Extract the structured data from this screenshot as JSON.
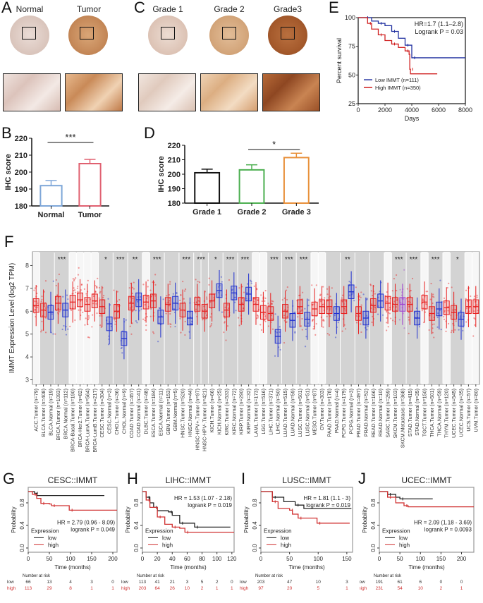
{
  "panel_labels": {
    "A": "A",
    "B": "B",
    "C": "C",
    "D": "D",
    "E": "E",
    "F": "F",
    "G": "G",
    "H": "H",
    "I": "I",
    "J": "J"
  },
  "panel_A": {
    "captions": [
      "Normal",
      "Tumor"
    ]
  },
  "panel_C": {
    "captions": [
      "Grade 1",
      "Grade 2",
      "Grade3"
    ]
  },
  "chart_data": [
    {
      "id": "B",
      "type": "bar",
      "categories": [
        "Normal",
        "Tumor"
      ],
      "values": [
        192,
        205
      ],
      "errors": [
        3,
        2.5
      ],
      "colors": [
        "#7ea6d8",
        "#e06070"
      ],
      "ylabel": "IHC score",
      "ylim": [
        180,
        220
      ],
      "yticks": [
        180,
        190,
        200,
        210,
        220
      ],
      "significance": [
        {
          "from": 0,
          "to": 1,
          "label": "***"
        }
      ]
    },
    {
      "id": "D",
      "type": "bar",
      "categories": [
        "Grade 1",
        "Grade 2",
        "Grade 3"
      ],
      "values": [
        201,
        203,
        211.5
      ],
      "errors": [
        2.5,
        3.5,
        3
      ],
      "colors": [
        "#111111",
        "#4caf50",
        "#e8903a"
      ],
      "ylabel": "IHC score",
      "ylim": [
        180,
        220
      ],
      "yticks": [
        180,
        190,
        200,
        210,
        220
      ],
      "significance": [
        {
          "from": 1,
          "to": 2,
          "label": "*"
        }
      ]
    },
    {
      "id": "E",
      "type": "line",
      "subtype": "kaplan-meier",
      "xlabel": "Days",
      "ylabel": "Percent survival",
      "xlim": [
        0,
        8000
      ],
      "ylim": [
        25,
        100
      ],
      "xticks": [
        0,
        2000,
        4000,
        6000,
        8000
      ],
      "yticks": [
        25,
        50,
        75,
        100
      ],
      "annotation": [
        "HR=1.7 (1.1–2.8)",
        "Logrank P = 0.03"
      ],
      "series": [
        {
          "name": "Low IMMT (n=111)",
          "color": "#2030a0",
          "points": [
            [
              0,
              100
            ],
            [
              500,
              100
            ],
            [
              1000,
              97
            ],
            [
              1500,
              95
            ],
            [
              2000,
              93
            ],
            [
              2500,
              88
            ],
            [
              3000,
              82
            ],
            [
              3500,
              76
            ],
            [
              3950,
              76
            ],
            [
              4000,
              65
            ],
            [
              8000,
              65
            ]
          ]
        },
        {
          "name": "High IMMT (n=350)",
          "color": "#d02020",
          "points": [
            [
              0,
              100
            ],
            [
              700,
              95
            ],
            [
              1000,
              90
            ],
            [
              1500,
              85
            ],
            [
              2000,
              80
            ],
            [
              2500,
              77
            ],
            [
              3000,
              74
            ],
            [
              3500,
              71
            ],
            [
              3800,
              68
            ],
            [
              3850,
              55
            ],
            [
              3900,
              51
            ],
            [
              5900,
              51
            ]
          ]
        }
      ]
    },
    {
      "id": "F",
      "type": "box",
      "ylabel": "IMMT Expression Level (log2 TPM)",
      "ylim": [
        2.8,
        8.6
      ],
      "yticks": [
        3,
        4,
        5,
        6,
        7,
        8
      ],
      "samples": [
        {
          "label": "ACC.Tumor (n=79)",
          "median": 6.25
        },
        {
          "label": "BLCA.Tumor (n=408)",
          "median": 6.05
        },
        {
          "label": "BLCA.Normal (n=19)",
          "median": 5.95
        },
        {
          "label": "BRCA.Tumor (n=1093)",
          "median": 6.35
        },
        {
          "label": "BRCA.Normal (n=112)",
          "median": 6.05,
          "sig": "***"
        },
        {
          "label": "BRCA-Basal.Tumor (n=190)",
          "median": 6.4
        },
        {
          "label": "BRCA-Her2.Tumor (n=82)",
          "median": 6.5
        },
        {
          "label": "BRCA-LumA.Tumor (n=564)",
          "median": 6.3
        },
        {
          "label": "BRCA-LumB.Tumor (n=217)",
          "median": 6.45
        },
        {
          "label": "CESC.Tumor (n=304)",
          "median": 6.2
        },
        {
          "label": "CESC.Normal (n=3)",
          "median": 5.45,
          "sig": "*"
        },
        {
          "label": "CHOL.Tumor (n=36)",
          "median": 6.0
        },
        {
          "label": "CHOL.Normal (n=9)",
          "median": 4.8,
          "sig": "***"
        },
        {
          "label": "COAD.Tumor (n=457)",
          "median": 6.35
        },
        {
          "label": "COAD.Normal (n=41)",
          "median": 6.5,
          "sig": "**"
        },
        {
          "label": "DLBC.Tumor (n=48)",
          "median": 6.4
        },
        {
          "label": "ESCA.Tumor (n=184)",
          "median": 6.45
        },
        {
          "label": "ESCA.Normal (n=11)",
          "median": 5.75,
          "sig": "***"
        },
        {
          "label": "GBM.Tumor (n=153)",
          "median": 6.3
        },
        {
          "label": "GBM.Normal (n=5)",
          "median": 6.35
        },
        {
          "label": "HNSC.Tumor (n=520)",
          "median": 6.05
        },
        {
          "label": "HNSC.Normal (n=44)",
          "median": 5.7,
          "sig": "***"
        },
        {
          "label": "HNSC-HPV+.Tumor (n=97)",
          "median": 6.3
        },
        {
          "label": "HNSC-HPV-.Tumor (n=421)",
          "median": 6.0,
          "sig": "***"
        },
        {
          "label": "KICH.Tumor (n=66)",
          "median": 6.45
        },
        {
          "label": "KICH.Normal (n=25)",
          "median": 6.9,
          "sig": "*"
        },
        {
          "label": "KIRC.Tumor (n=533)",
          "median": 6.05
        },
        {
          "label": "KIRC.Normal (n=72)",
          "median": 6.8,
          "sig": "***"
        },
        {
          "label": "KIRP.Tumor (n=290)",
          "median": 6.3
        },
        {
          "label": "KIRP.Normal (n=32)",
          "median": 6.75,
          "sig": "***"
        },
        {
          "label": "LAML.Tumor (n=173)",
          "median": 6.3
        },
        {
          "label": "LGG.Tumor (n=516)",
          "median": 5.95
        },
        {
          "label": "LIHC.Tumor (n=371)",
          "median": 5.9
        },
        {
          "label": "LIHC.Normal (n=50)",
          "median": 4.9,
          "sig": "***"
        },
        {
          "label": "LUAD.Tumor (n=515)",
          "median": 6.0
        },
        {
          "label": "LUAD.Normal (n=59)",
          "median": 5.6,
          "sig": "***"
        },
        {
          "label": "LUSC.Tumor (n=501)",
          "median": 6.2
        },
        {
          "label": "LUSC.Normal (n=51)",
          "median": 5.65,
          "sig": "***"
        },
        {
          "label": "MESO.Tumor (n=87)",
          "median": 6.1
        },
        {
          "label": "OV.Tumor (n=303)",
          "median": 6.2
        },
        {
          "label": "PAAD.Tumor (n=178)",
          "median": 6.2
        },
        {
          "label": "PAAD.Normal (n=4)",
          "median": 5.9
        },
        {
          "label": "PCPG.Tumor (n=179)",
          "median": 6.2
        },
        {
          "label": "PCPG.Normal (n=3)",
          "median": 6.85,
          "sig": "**"
        },
        {
          "label": "PRAD.Tumor (n=497)",
          "median": 5.9
        },
        {
          "label": "PRAD.Normal (n=52)",
          "median": 5.7
        },
        {
          "label": "READ.Tumor (n=166)",
          "median": 6.25
        },
        {
          "label": "READ.Normal (n=10)",
          "median": 6.45
        },
        {
          "label": "SARC.Tumor (n=259)",
          "median": 6.35
        },
        {
          "label": "SKCM.Tumor (n=103)",
          "median": 6.3
        },
        {
          "label": "SKCM.Metastasis (n=368)",
          "median": 6.3,
          "sig": "***"
        },
        {
          "label": "STAD.Tumor (n=415)",
          "median": 6.3
        },
        {
          "label": "STAD.Normal (n=35)",
          "median": 5.7,
          "sig": "***"
        },
        {
          "label": "TGCT.Tumor (n=150)",
          "median": 6.4
        },
        {
          "label": "THCA.Tumor (n=501)",
          "median": 5.9
        },
        {
          "label": "THCA.Normal (n=59)",
          "median": 6.1,
          "sig": "***"
        },
        {
          "label": "THYM.Tumor (n=120)",
          "median": 6.15
        },
        {
          "label": "UCEC.Tumor (n=545)",
          "median": 5.95
        },
        {
          "label": "UCEC.Normal (n=35)",
          "median": 5.65,
          "sig": "*"
        },
        {
          "label": "UCS.Tumor (n=57)",
          "median": 6.2
        },
        {
          "label": "UVM.Tumor (n=80)",
          "median": 6.2
        }
      ],
      "colors": {
        "tumor": "#e82020",
        "normal": "#2030d0",
        "metastasis": "#a040d0"
      }
    },
    {
      "id": "G",
      "type": "line",
      "subtype": "kaplan-meier",
      "title": "CESC::IMMT",
      "xlabel": "Time (months)",
      "ylabel": "Probability",
      "xlim": [
        0,
        210
      ],
      "ylim": [
        0,
        1
      ],
      "xticks": [
        0,
        50,
        100,
        150,
        200
      ],
      "yticks": [
        0.0,
        0.4,
        0.8
      ],
      "annotation": [
        "HR = 2.79 (0.96 - 8.09)",
        "logrank P = 0.049"
      ],
      "annotation_pos": "bottom",
      "legend": {
        "title": "Expression",
        "items": [
          "low",
          "high"
        ]
      },
      "risk_table": {
        "title": "Number at risk",
        "rows": [
          {
            "name": "low",
            "values": [
              "66",
              "13",
              "4",
              "3",
              "0"
            ]
          },
          {
            "name": "high",
            "values": [
              "113",
              "29",
              "8",
              "1",
              "1"
            ]
          }
        ]
      },
      "series": [
        {
          "name": "low",
          "color": "#222222",
          "points": [
            [
              0,
              1
            ],
            [
              15,
              0.97
            ],
            [
              20,
              0.93
            ],
            [
              180,
              0.93
            ]
          ]
        },
        {
          "name": "high",
          "color": "#d03030",
          "points": [
            [
              0,
              1
            ],
            [
              10,
              0.95
            ],
            [
              20,
              0.88
            ],
            [
              30,
              0.79
            ],
            [
              50,
              0.78
            ],
            [
              55,
              0.75
            ],
            [
              95,
              0.75
            ],
            [
              97,
              0.67
            ],
            [
              210,
              0.67
            ]
          ]
        }
      ]
    },
    {
      "id": "H",
      "type": "line",
      "subtype": "kaplan-meier",
      "title": "LIHC::IMMT",
      "xlabel": "Time (months)",
      "ylabel": "Probability",
      "xlim": [
        0,
        123
      ],
      "ylim": [
        0,
        1
      ],
      "xticks": [
        0,
        20,
        40,
        60,
        80,
        100,
        120
      ],
      "yticks": [
        0.0,
        0.4,
        0.8
      ],
      "annotation": [
        "HR = 1.53 (1.07 - 2.18)",
        "logrank P = 0.019"
      ],
      "annotation_pos": "top",
      "legend": {
        "title": "Expression",
        "items": [
          "low",
          "high"
        ]
      },
      "risk_table": {
        "title": "Number at risk",
        "rows": [
          {
            "name": "low",
            "values": [
              "113",
              "41",
              "21",
              "3",
              "5",
              "2",
              "0"
            ]
          },
          {
            "name": "high",
            "values": [
              "203",
              "64",
              "26",
              "10",
              "2",
              "1",
              "1"
            ]
          }
        ]
      },
      "series": [
        {
          "name": "low",
          "color": "#222222",
          "points": [
            [
              0,
              1
            ],
            [
              5,
              0.9
            ],
            [
              10,
              0.8
            ],
            [
              15,
              0.72
            ],
            [
              20,
              0.66
            ],
            [
              35,
              0.64
            ],
            [
              40,
              0.58
            ],
            [
              50,
              0.44
            ],
            [
              68,
              0.44
            ],
            [
              70,
              0.37
            ],
            [
              118,
              0.37
            ]
          ]
        },
        {
          "name": "high",
          "color": "#d03030",
          "points": [
            [
              0,
              1
            ],
            [
              5,
              0.85
            ],
            [
              10,
              0.72
            ],
            [
              20,
              0.55
            ],
            [
              30,
              0.42
            ],
            [
              40,
              0.37
            ],
            [
              50,
              0.35
            ],
            [
              57,
              0.28
            ],
            [
              123,
              0.28
            ]
          ]
        }
      ]
    },
    {
      "id": "I",
      "type": "line",
      "subtype": "kaplan-meier",
      "title": "LUSC::IMMT",
      "xlabel": "Time (months)",
      "ylabel": "Probability",
      "xlim": [
        0,
        160
      ],
      "ylim": [
        0,
        1
      ],
      "xticks": [
        0,
        50,
        100,
        150
      ],
      "yticks": [
        0.0,
        0.4,
        0.8
      ],
      "annotation": [
        "HR = 1.81 (1.1 - 3)",
        "logrank P = 0.019"
      ],
      "annotation_pos": "top",
      "legend": {
        "title": "Expression",
        "items": [
          "low",
          "high"
        ]
      },
      "risk_table": {
        "title": "Number at risk",
        "rows": [
          {
            "name": "low",
            "values": [
              "203",
              "47",
              "10",
              "3"
            ]
          },
          {
            "name": "high",
            "values": [
              "97",
              "20",
              "5",
              "1"
            ]
          }
        ]
      },
      "series": [
        {
          "name": "low",
          "color": "#222222",
          "points": [
            [
              0,
              1
            ],
            [
              20,
              0.9
            ],
            [
              40,
              0.82
            ],
            [
              60,
              0.76
            ],
            [
              75,
              0.7
            ],
            [
              158,
              0.7
            ]
          ]
        },
        {
          "name": "high",
          "color": "#d03030",
          "points": [
            [
              0,
              1
            ],
            [
              20,
              0.82
            ],
            [
              30,
              0.7
            ],
            [
              50,
              0.67
            ],
            [
              55,
              0.6
            ],
            [
              65,
              0.53
            ],
            [
              97,
              0.53
            ],
            [
              98,
              0.44
            ],
            [
              155,
              0.44
            ]
          ]
        }
      ]
    },
    {
      "id": "J",
      "type": "line",
      "subtype": "kaplan-meier",
      "title": "UCEC::IMMT",
      "xlabel": "Time (months)",
      "ylabel": "Probability",
      "xlim": [
        0,
        230
      ],
      "ylim": [
        0,
        1
      ],
      "xticks": [
        0,
        50,
        100,
        150,
        200
      ],
      "yticks": [
        0.0,
        0.4,
        0.8
      ],
      "annotation": [
        "HR = 2.09 (1.18 - 3.69)",
        "logrank P = 0.0093"
      ],
      "annotation_pos": "bottom",
      "legend": {
        "title": "Expression",
        "items": [
          "low",
          "high"
        ]
      },
      "risk_table": {
        "title": "Number at risk",
        "rows": [
          {
            "name": "low",
            "values": [
              "191",
              "61",
              "6",
              "0",
              "0"
            ]
          },
          {
            "name": "high",
            "values": [
              "231",
              "54",
              "10",
              "2",
              "1"
            ]
          }
        ]
      },
      "series": [
        {
          "name": "low",
          "color": "#222222",
          "points": [
            [
              0,
              1
            ],
            [
              20,
              0.95
            ],
            [
              40,
              0.9
            ],
            [
              50,
              0.87
            ],
            [
              130,
              0.87
            ]
          ]
        },
        {
          "name": "high",
          "color": "#d03030",
          "points": [
            [
              0,
              1
            ],
            [
              20,
              0.9
            ],
            [
              40,
              0.8
            ],
            [
              60,
              0.75
            ],
            [
              70,
              0.73
            ],
            [
              230,
              0.73
            ]
          ]
        }
      ]
    }
  ]
}
